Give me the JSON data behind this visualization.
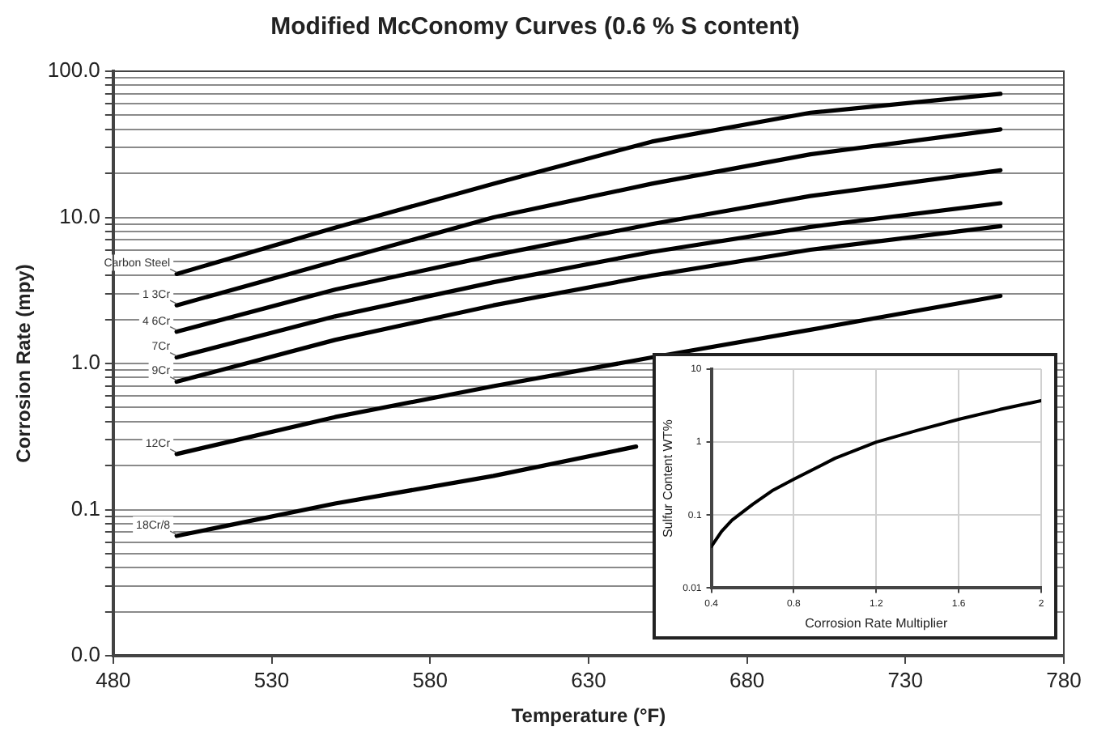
{
  "chart_data": [
    {
      "type": "line",
      "title": "Modified McConomy Curves (0.6 % S content)",
      "xlabel": "Temperature (°F)",
      "ylabel": "Corrosion Rate (mpy)",
      "x": [
        500,
        550,
        600,
        650,
        700,
        760
      ],
      "series": [
        {
          "name": "Carbon Steel",
          "color": "#000000",
          "values": [
            4.1,
            8.5,
            17,
            33,
            52,
            70
          ]
        },
        {
          "name": "1 3Cr",
          "color": "#000000",
          "values": [
            2.5,
            5,
            10,
            17,
            27,
            40
          ]
        },
        {
          "name": "4 6Cr",
          "color": "#000000",
          "values": [
            1.65,
            3.2,
            5.5,
            9,
            14,
            21
          ]
        },
        {
          "name": "7Cr",
          "color": "#000000",
          "values": [
            1.1,
            2.1,
            3.6,
            5.8,
            8.6,
            12.5
          ]
        },
        {
          "name": "9Cr",
          "color": "#000000",
          "values": [
            0.75,
            1.45,
            2.5,
            4,
            6,
            8.7
          ]
        },
        {
          "name": "12Cr",
          "color": "#000000",
          "values": [
            0.24,
            0.43,
            0.7,
            1.1,
            1.7,
            2.9
          ]
        },
        {
          "name": "18Cr/8",
          "color": "#000000",
          "x": [
            500,
            550,
            600,
            645
          ],
          "values": [
            0.066,
            0.11,
            0.17,
            0.27
          ]
        }
      ],
      "xlim": [
        480,
        780
      ],
      "xticks": [
        480,
        530,
        580,
        630,
        680,
        730,
        780
      ],
      "ylim": [
        0.01,
        100
      ],
      "yticks": [
        {
          "value": 0.01,
          "label": "0.0"
        },
        {
          "value": 0.02,
          "label": null
        },
        {
          "value": 0.03,
          "label": null
        },
        {
          "value": 0.04,
          "label": null
        },
        {
          "value": 0.05,
          "label": null
        },
        {
          "value": 0.06,
          "label": null
        },
        {
          "value": 0.07,
          "label": null
        },
        {
          "value": 0.08,
          "label": null
        },
        {
          "value": 0.09,
          "label": null
        },
        0.1,
        {
          "value": 0.2,
          "label": null
        },
        {
          "value": 0.3,
          "label": null
        },
        {
          "value": 0.4,
          "label": null
        },
        {
          "value": 0.5,
          "label": null
        },
        {
          "value": 0.6,
          "label": null
        },
        {
          "value": 0.7,
          "label": null
        },
        {
          "value": 0.8,
          "label": null
        },
        {
          "value": 0.9,
          "label": null
        },
        {
          "value": 1,
          "label": "1.0"
        },
        {
          "value": 2,
          "label": null
        },
        {
          "value": 3,
          "label": null
        },
        {
          "value": 4,
          "label": null
        },
        {
          "value": 5,
          "label": null
        },
        {
          "value": 6,
          "label": null
        },
        {
          "value": 7,
          "label": null
        },
        {
          "value": 8,
          "label": null
        },
        {
          "value": 9,
          "label": null
        },
        {
          "value": 10,
          "label": "10.0"
        },
        {
          "value": 20,
          "label": null
        },
        {
          "value": 30,
          "label": null
        },
        {
          "value": 40,
          "label": null
        },
        {
          "value": 50,
          "label": null
        },
        {
          "value": 60,
          "label": null
        },
        {
          "value": 70,
          "label": null
        },
        {
          "value": 80,
          "label": null
        },
        {
          "value": 90,
          "label": null
        },
        {
          "value": 100,
          "label": "100.0"
        }
      ],
      "log": "y",
      "grid": "y",
      "legend": false,
      "marker": "none",
      "line_style": "solid"
    },
    {
      "type": "line",
      "xlabel": "Corrosion Rate Multiplier",
      "ylabel": "Sulfur Content WT%",
      "x": [
        0.4,
        0.45,
        0.5,
        0.6,
        0.7,
        0.8,
        1.0,
        1.2,
        1.4,
        1.6,
        1.8,
        2.0
      ],
      "series": [
        {
          "color": "#000000",
          "values": [
            0.037,
            0.06,
            0.085,
            0.14,
            0.22,
            0.31,
            0.6,
            1.0,
            1.45,
            2.05,
            2.8,
            3.7
          ]
        }
      ],
      "xlim": [
        0.4,
        2
      ],
      "xticks": [
        0.4,
        0.8,
        1.2,
        1.6,
        2
      ],
      "ylim": [
        0.01,
        10
      ],
      "yticks": [
        0.01,
        0.1,
        1,
        10
      ],
      "log": "y",
      "grid": true,
      "legend": false,
      "marker": "none",
      "line_style": "solid"
    }
  ]
}
